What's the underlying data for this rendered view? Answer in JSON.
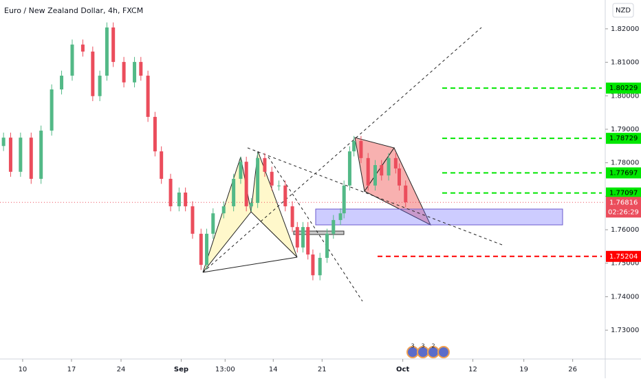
{
  "chart_data": {
    "type": "candlestick",
    "title": "Euro / New Zealand Dollar, 4h, FXCM",
    "currency": "NZD",
    "x": [
      7.3,
      8.3,
      9.7,
      11.2,
      12.6,
      14.1,
      15.5,
      17.0,
      18.5,
      19.9,
      20.9,
      21.9,
      22.8,
      24.3,
      25.8,
      26.7,
      27.7,
      28.7,
      29.6,
      30.9,
      32.1,
      33.0,
      34.0,
      35.2,
      36.0,
      36.9,
      38.4,
      39.8,
      40.8,
      41.6,
      42.3,
      43.2,
      44.2,
      45.2,
      46.2,
      47.1,
      48.1,
      48.8,
      49.6,
      50.3,
      51.0,
      52.0,
      53.0,
      53.9,
      54.9,
      55.4,
      56.2,
      56.8,
      57.8,
      58.8,
      59.8,
      60.7,
      61.7,
      62.7,
      63.2,
      64.1
    ],
    "open": [
      1.785,
      1.7875,
      1.7773,
      1.7875,
      1.7752,
      1.7896,
      1.8019,
      1.806,
      1.8153,
      1.8132,
      1.7999,
      1.806,
      1.8204,
      1.8101,
      1.804,
      1.8101,
      1.806,
      1.7937,
      1.7834,
      1.7752,
      1.767,
      1.7711,
      1.767,
      1.7588,
      1.7495,
      1.7588,
      1.7649,
      1.767,
      1.7752,
      1.7803,
      1.767,
      1.768,
      1.7814,
      1.7773,
      1.7732,
      1.7732,
      1.767,
      1.7608,
      1.7547,
      1.7608,
      1.7526,
      1.7464,
      1.7516,
      1.7588,
      1.7629,
      1.7649,
      1.7732,
      1.7834,
      1.7865,
      1.7814,
      1.7732,
      1.7793,
      1.7762,
      1.7814,
      1.7783,
      1.7732
    ],
    "high": [
      1.789,
      1.789,
      1.789,
      1.789,
      1.7911,
      1.8034,
      1.8075,
      1.8168,
      1.8168,
      1.8147,
      1.8075,
      1.8219,
      1.8219,
      1.8116,
      1.8116,
      1.8116,
      1.8075,
      1.7952,
      1.7849,
      1.7767,
      1.7726,
      1.7726,
      1.7685,
      1.7603,
      1.7603,
      1.7664,
      1.7685,
      1.7767,
      1.7818,
      1.7818,
      1.7695,
      1.7829,
      1.7829,
      1.7788,
      1.7747,
      1.7747,
      1.7685,
      1.7623,
      1.7623,
      1.7623,
      1.7541,
      1.7531,
      1.7603,
      1.7644,
      1.7664,
      1.7747,
      1.7849,
      1.788,
      1.788,
      1.7829,
      1.7808,
      1.7808,
      1.7829,
      1.7829,
      1.7798,
      1.7747
    ],
    "low": [
      1.7835,
      1.7758,
      1.7758,
      1.7737,
      1.7737,
      1.7881,
      1.8004,
      1.8045,
      1.8117,
      1.7984,
      1.7984,
      1.8045,
      1.8086,
      1.8025,
      1.8025,
      1.8045,
      1.7922,
      1.7819,
      1.7737,
      1.7655,
      1.7655,
      1.7655,
      1.7573,
      1.748,
      1.748,
      1.7573,
      1.7634,
      1.7655,
      1.7737,
      1.7655,
      1.7655,
      1.7665,
      1.7758,
      1.7717,
      1.7717,
      1.7655,
      1.7593,
      1.7532,
      1.7532,
      1.7511,
      1.7449,
      1.7449,
      1.7501,
      1.7573,
      1.7614,
      1.7634,
      1.7717,
      1.7819,
      1.7799,
      1.7717,
      1.7717,
      1.7747,
      1.7747,
      1.7768,
      1.7717,
      1.7667
    ],
    "close": [
      1.7875,
      1.7773,
      1.7875,
      1.7752,
      1.7896,
      1.8019,
      1.806,
      1.8153,
      1.8132,
      1.7999,
      1.806,
      1.8204,
      1.8101,
      1.804,
      1.8101,
      1.806,
      1.7937,
      1.7834,
      1.7752,
      1.767,
      1.7711,
      1.767,
      1.7588,
      1.7495,
      1.7588,
      1.7649,
      1.767,
      1.7752,
      1.7803,
      1.767,
      1.768,
      1.7814,
      1.7773,
      1.7732,
      1.7732,
      1.767,
      1.7608,
      1.7547,
      1.7608,
      1.7526,
      1.7464,
      1.7516,
      1.7588,
      1.7629,
      1.7649,
      1.7732,
      1.7834,
      1.7865,
      1.7814,
      1.7732,
      1.7793,
      1.7762,
      1.7814,
      1.7783,
      1.7732,
      1.7682
    ],
    "up_color": "#53b987",
    "down_color": "#eb4d5c",
    "xlim": [
      6.8,
      92.3
    ],
    "xticks": [
      {
        "value": 10.0,
        "label": "10"
      },
      {
        "value": 16.9,
        "label": "17"
      },
      {
        "value": 23.9,
        "label": "24"
      },
      {
        "value": 32.4,
        "label": "Sep"
      },
      {
        "value": 38.6,
        "label": "13:00"
      },
      {
        "value": 45.4,
        "label": "14"
      },
      {
        "value": 52.3,
        "label": "21"
      },
      {
        "value": 63.7,
        "label": "Oct"
      },
      {
        "value": 73.6,
        "label": "12"
      },
      {
        "value": 80.8,
        "label": "19"
      },
      {
        "value": 87.7,
        "label": "26"
      }
    ],
    "ylim": [
      1.7214,
      1.8286
    ],
    "yticks": [
      {
        "value": 1.73,
        "label": "1.73000"
      },
      {
        "value": 1.74,
        "label": "1.74000"
      },
      {
        "value": 1.75,
        "label": "1.75000"
      },
      {
        "value": 1.76,
        "label": "1.76000"
      },
      {
        "value": 1.77,
        "label": "1.77000"
      },
      {
        "value": 1.78,
        "label": "1.78000"
      },
      {
        "value": 1.79,
        "label": "1.79000"
      },
      {
        "value": 1.8,
        "label": "1.80000"
      },
      {
        "value": 1.81,
        "label": "1.81000"
      },
      {
        "value": 1.82,
        "label": "1.82000"
      }
    ],
    "levels": [
      {
        "value": 1.80229,
        "color": "#00e600"
      },
      {
        "value": 1.78729,
        "color": "#00e600"
      },
      {
        "value": 1.77697,
        "color": "#00e600"
      },
      {
        "value": 1.77097,
        "color": "#00e600"
      },
      {
        "value": 1.75204,
        "color": "#ff0000"
      }
    ],
    "last_price": 1.76816,
    "countdown": "02:26:29",
    "event_badges": [
      "3",
      "3",
      "2"
    ]
  }
}
